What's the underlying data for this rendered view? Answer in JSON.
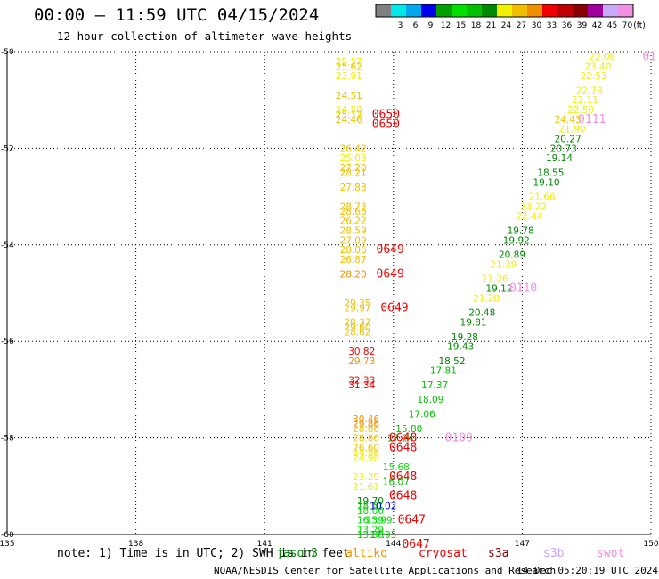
{
  "title": "00:00 — 11:59 UTC 04/15/2024",
  "subtitle": "12 hour collection of altimeter wave heights",
  "legend": {
    "unit": "(ft)",
    "bins": [
      {
        "label": "",
        "color": "#808080"
      },
      {
        "label": "3",
        "color": "#00e8e8"
      },
      {
        "label": "6",
        "color": "#00a8f0"
      },
      {
        "label": "9",
        "color": "#0000f0"
      },
      {
        "label": "12",
        "color": "#00a000"
      },
      {
        "label": "15",
        "color": "#00e000"
      },
      {
        "label": "18",
        "color": "#00c000"
      },
      {
        "label": "21",
        "color": "#008800"
      },
      {
        "label": "24",
        "color": "#f0f000"
      },
      {
        "label": "27",
        "color": "#f0c000"
      },
      {
        "label": "30",
        "color": "#f09000"
      },
      {
        "label": "33",
        "color": "#f00000"
      },
      {
        "label": "36",
        "color": "#c00000"
      },
      {
        "label": "39",
        "color": "#880000"
      },
      {
        "label": "42",
        "color": "#a000a0"
      },
      {
        "label": "45",
        "color": "#c8a8f8"
      },
      {
        "label": "70",
        "color": "#f090e0"
      }
    ]
  },
  "chart_data": {
    "type": "scatter",
    "xlim": [
      135,
      150
    ],
    "ylim": [
      -60,
      -50
    ],
    "xticks": [
      "135",
      "138",
      "141",
      "144",
      "147",
      "150"
    ],
    "yticks": [
      "-50",
      "-52",
      "-54",
      "-56",
      "-58",
      "-60"
    ],
    "grid": true,
    "points": [
      {
        "x": 142.9,
        "y": -50.2,
        "label": "25.57",
        "color": "#f0f000"
      },
      {
        "x": 142.9,
        "y": -50.3,
        "label": "25.62",
        "color": "#f0c000"
      },
      {
        "x": 142.9,
        "y": -50.5,
        "label": "23.91",
        "color": "#f0f000"
      },
      {
        "x": 142.9,
        "y": -50.9,
        "label": "24.51",
        "color": "#f0c000"
      },
      {
        "x": 142.9,
        "y": -51.2,
        "label": "24.50",
        "color": "#f0f000"
      },
      {
        "x": 142.9,
        "y": -51.3,
        "label": "25.12",
        "color": "#f0c000"
      },
      {
        "x": 142.9,
        "y": -51.4,
        "label": "24.46",
        "color": "#f0c000"
      },
      {
        "x": 143.0,
        "y": -52.0,
        "label": "26.42",
        "color": "#f0c000"
      },
      {
        "x": 143.0,
        "y": -52.2,
        "label": "25.03",
        "color": "#f0f000"
      },
      {
        "x": 143.0,
        "y": -52.4,
        "label": "27.20",
        "color": "#f0c000"
      },
      {
        "x": 143.0,
        "y": -52.5,
        "label": "28.21",
        "color": "#f0c000"
      },
      {
        "x": 143.0,
        "y": -52.8,
        "label": "27.83",
        "color": "#f0c000"
      },
      {
        "x": 143.0,
        "y": -53.2,
        "label": "28.73",
        "color": "#f0c000"
      },
      {
        "x": 143.0,
        "y": -53.3,
        "label": "28.66",
        "color": "#f0c000"
      },
      {
        "x": 143.0,
        "y": -53.5,
        "label": "26.22",
        "color": "#f0c000"
      },
      {
        "x": 143.0,
        "y": -53.7,
        "label": "28.59",
        "color": "#f0c000"
      },
      {
        "x": 143.0,
        "y": -53.9,
        "label": "27.09",
        "color": "#f0c000"
      },
      {
        "x": 143.0,
        "y": -54.1,
        "label": "28.06",
        "color": "#f0c000"
      },
      {
        "x": 143.0,
        "y": -54.3,
        "label": "26.87",
        "color": "#f0c000"
      },
      {
        "x": 143.0,
        "y": -54.6,
        "label": "28.20",
        "color": "#f09000"
      },
      {
        "x": 143.1,
        "y": -55.2,
        "label": "29.35",
        "color": "#f0c000"
      },
      {
        "x": 143.1,
        "y": -55.3,
        "label": "29.97",
        "color": "#f0c000"
      },
      {
        "x": 143.1,
        "y": -55.6,
        "label": "28.37",
        "color": "#f0c000"
      },
      {
        "x": 143.1,
        "y": -55.7,
        "label": "29.60",
        "color": "#f0c000"
      },
      {
        "x": 143.1,
        "y": -55.8,
        "label": "28.62",
        "color": "#f0c000"
      },
      {
        "x": 143.2,
        "y": -56.2,
        "label": "30.82",
        "color": "#f00000"
      },
      {
        "x": 143.2,
        "y": -56.4,
        "label": "29.73",
        "color": "#f09000"
      },
      {
        "x": 143.2,
        "y": -56.8,
        "label": "32.33",
        "color": "#f00000"
      },
      {
        "x": 143.2,
        "y": -56.9,
        "label": "31.34",
        "color": "#f00000"
      },
      {
        "x": 143.3,
        "y": -57.6,
        "label": "30.46",
        "color": "#f09000"
      },
      {
        "x": 143.3,
        "y": -57.7,
        "label": "29.86",
        "color": "#f09000"
      },
      {
        "x": 143.3,
        "y": -57.8,
        "label": "28.86",
        "color": "#f0c000"
      },
      {
        "x": 143.3,
        "y": -58.0,
        "label": "28.86",
        "color": "#f0c000"
      },
      {
        "x": 143.3,
        "y": -58.2,
        "label": "26.60",
        "color": "#f0c000"
      },
      {
        "x": 143.3,
        "y": -58.3,
        "label": "24.96",
        "color": "#f0f000"
      },
      {
        "x": 143.3,
        "y": -58.4,
        "label": "24.98",
        "color": "#f0f000"
      },
      {
        "x": 143.3,
        "y": -58.8,
        "label": "23.29",
        "color": "#f0f000"
      },
      {
        "x": 143.3,
        "y": -59.0,
        "label": "21.61",
        "color": "#f0f000"
      },
      {
        "x": 143.4,
        "y": -59.3,
        "label": "19.70",
        "color": "#008800"
      },
      {
        "x": 143.4,
        "y": -59.4,
        "label": "18.61",
        "color": "#00c000"
      },
      {
        "x": 143.4,
        "y": -59.5,
        "label": "18.06",
        "color": "#00e000"
      },
      {
        "x": 143.4,
        "y": -59.7,
        "label": "16.39",
        "color": "#00e000"
      },
      {
        "x": 143.4,
        "y": -59.9,
        "label": "13.29",
        "color": "#00e000"
      },
      {
        "x": 143.4,
        "y": -60.0,
        "label": "13.88",
        "color": "#00e000"
      },
      {
        "x": 143.6,
        "y": -59.7,
        "label": "15.99",
        "color": "#00e000"
      },
      {
        "x": 143.7,
        "y": -59.4,
        "label": "10.02",
        "color": "#0000f0"
      },
      {
        "x": 143.7,
        "y": -60.0,
        "label": "17.95",
        "color": "#00c000"
      },
      {
        "x": 144.0,
        "y": -58.9,
        "label": "16.07",
        "color": "#00c000"
      },
      {
        "x": 144.0,
        "y": -58.6,
        "label": "15.68",
        "color": "#00e000"
      },
      {
        "x": 144.1,
        "y": -58.0,
        "label": "17.24",
        "color": "#00c000"
      },
      {
        "x": 144.3,
        "y": -57.8,
        "label": "15.80",
        "color": "#00c000"
      },
      {
        "x": 144.6,
        "y": -57.5,
        "label": "17.06",
        "color": "#00c000"
      },
      {
        "x": 144.8,
        "y": -57.2,
        "label": "18.09",
        "color": "#00c000"
      },
      {
        "x": 144.9,
        "y": -56.9,
        "label": "17.37",
        "color": "#00c000"
      },
      {
        "x": 145.1,
        "y": -56.6,
        "label": "17.81",
        "color": "#00c000"
      },
      {
        "x": 145.3,
        "y": -56.4,
        "label": "18.52",
        "color": "#008800"
      },
      {
        "x": 145.5,
        "y": -56.1,
        "label": "19.43",
        "color": "#008800"
      },
      {
        "x": 145.6,
        "y": -55.9,
        "label": "19.28",
        "color": "#008800"
      },
      {
        "x": 145.8,
        "y": -55.6,
        "label": "19.81",
        "color": "#008800"
      },
      {
        "x": 146.0,
        "y": -55.4,
        "label": "20.48",
        "color": "#008800"
      },
      {
        "x": 146.1,
        "y": -55.1,
        "label": "21.28",
        "color": "#f0f000"
      },
      {
        "x": 146.4,
        "y": -54.9,
        "label": "19.12",
        "color": "#008800"
      },
      {
        "x": 146.3,
        "y": -54.7,
        "label": "21.26",
        "color": "#f0f000"
      },
      {
        "x": 146.5,
        "y": -54.4,
        "label": "21.39",
        "color": "#f0f000"
      },
      {
        "x": 146.7,
        "y": -54.2,
        "label": "20.89",
        "color": "#008800"
      },
      {
        "x": 146.8,
        "y": -53.9,
        "label": "19.92",
        "color": "#008800"
      },
      {
        "x": 146.9,
        "y": -53.7,
        "label": "19.78",
        "color": "#008800"
      },
      {
        "x": 147.1,
        "y": -53.4,
        "label": "22.44",
        "color": "#f0f000"
      },
      {
        "x": 147.2,
        "y": -53.2,
        "label": "23.22",
        "color": "#f0f000"
      },
      {
        "x": 147.4,
        "y": -53.0,
        "label": "21.66",
        "color": "#f0f000"
      },
      {
        "x": 147.5,
        "y": -52.7,
        "label": "19.10",
        "color": "#008800"
      },
      {
        "x": 147.6,
        "y": -52.5,
        "label": "18.55",
        "color": "#008800"
      },
      {
        "x": 147.8,
        "y": -52.2,
        "label": "19.14",
        "color": "#008800"
      },
      {
        "x": 147.9,
        "y": -52.0,
        "label": "20.73",
        "color": "#008800"
      },
      {
        "x": 148.0,
        "y": -51.8,
        "label": "20.27",
        "color": "#008800"
      },
      {
        "x": 148.1,
        "y": -51.6,
        "label": "21.90",
        "color": "#f0f000"
      },
      {
        "x": 148.0,
        "y": -51.4,
        "label": "24.43",
        "color": "#f0c000"
      },
      {
        "x": 148.3,
        "y": -51.2,
        "label": "22.50",
        "color": "#f0f000"
      },
      {
        "x": 148.4,
        "y": -51.0,
        "label": "22.11",
        "color": "#f0f000"
      },
      {
        "x": 148.5,
        "y": -50.8,
        "label": "22.78",
        "color": "#f0f000"
      },
      {
        "x": 148.6,
        "y": -50.5,
        "label": "22.53",
        "color": "#f0f000"
      },
      {
        "x": 148.7,
        "y": -50.3,
        "label": "23.40",
        "color": "#f0f000"
      },
      {
        "x": 148.8,
        "y": -50.1,
        "label": "22.08",
        "color": "#f0f000"
      }
    ],
    "pass_labels": [
      {
        "x": 143.5,
        "y": -51.3,
        "label": "0650",
        "color": "#f00000"
      },
      {
        "x": 143.5,
        "y": -51.5,
        "label": "0650",
        "color": "#f00000"
      },
      {
        "x": 143.6,
        "y": -54.1,
        "label": "0649",
        "color": "#f00000"
      },
      {
        "x": 143.6,
        "y": -54.6,
        "label": "0649",
        "color": "#f00000"
      },
      {
        "x": 143.7,
        "y": -55.3,
        "label": "0649",
        "color": "#f00000"
      },
      {
        "x": 143.9,
        "y": -58.0,
        "label": "0648",
        "color": "#f00000"
      },
      {
        "x": 143.9,
        "y": -58.2,
        "label": "0648",
        "color": "#f00000"
      },
      {
        "x": 143.9,
        "y": -58.8,
        "label": "0648",
        "color": "#f00000"
      },
      {
        "x": 143.9,
        "y": -59.2,
        "label": "0648",
        "color": "#f00000"
      },
      {
        "x": 144.1,
        "y": -59.7,
        "label": "0647",
        "color": "#f00000"
      },
      {
        "x": 144.2,
        "y": -60.2,
        "label": "0647",
        "color": "#f00000"
      },
      {
        "x": 145.2,
        "y": -58.0,
        "label": "0109",
        "color": "#f090e0"
      },
      {
        "x": 146.7,
        "y": -54.9,
        "label": "0110",
        "color": "#f090e0"
      },
      {
        "x": 148.3,
        "y": -51.4,
        "label": "0111",
        "color": "#f090e0"
      },
      {
        "x": 149.8,
        "y": -50.1,
        "label": "01",
        "color": "#f090e0"
      }
    ]
  },
  "footer": {
    "note": "note: 1) Time is in UTC; 2) SWH is in feet",
    "satellites": [
      {
        "name": "jason3",
        "color": "#008800"
      },
      {
        "name": "altiko",
        "color": "#f09000"
      },
      {
        "name": "cryosat",
        "color": "#f00000"
      },
      {
        "name": "s3a",
        "color": "#880000"
      },
      {
        "name": "s3b",
        "color": "#c8a8f8"
      },
      {
        "name": "swot",
        "color": "#f090e0"
      }
    ],
    "credit": "NOAA/NESDIS Center for Satellite Applications and Research",
    "timestamp": "14 Dec 05:20:19 UTC 2024"
  }
}
